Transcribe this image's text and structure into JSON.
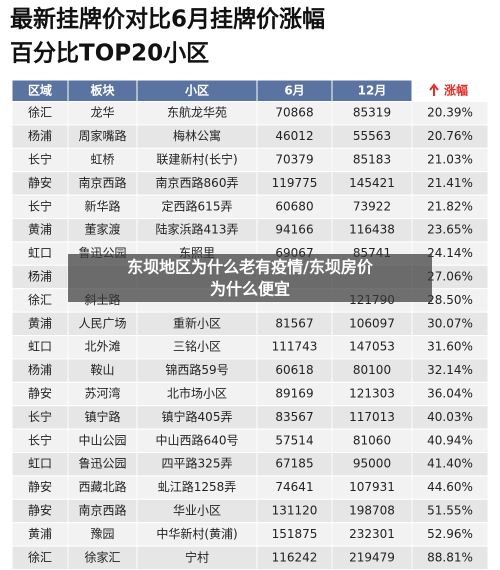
{
  "title": {
    "lines": [
      "最新挂牌价对比6月挂牌价涨幅",
      "百分比TOP20小区"
    ]
  },
  "table": {
    "header": [
      "区域",
      "板块",
      "小区",
      "6月",
      "12月",
      "涨幅"
    ],
    "rows": [
      [
        "徐汇",
        "龙华",
        "东航龙华苑",
        "70868",
        "85319",
        "20.39%"
      ],
      [
        "杨浦",
        "周家嘴路",
        "梅林公寓",
        "46012",
        "55563",
        "20.76%"
      ],
      [
        "长宁",
        "虹桥",
        "联建新村(长宁)",
        "70379",
        "85183",
        "21.03%"
      ],
      [
        "静安",
        "南京西路",
        "南京西路860弄",
        "119775",
        "145421",
        "21.41%"
      ],
      [
        "长宁",
        "新华路",
        "定西路615弄",
        "60680",
        "73922",
        "21.82%"
      ],
      [
        "黄浦",
        "董家渡",
        "陆家浜路413弄",
        "94166",
        "116438",
        "23.65%"
      ],
      [
        "虹口",
        "鲁迅公园",
        "东照里",
        "69067",
        "85741",
        "24.14%"
      ],
      [
        "杨浦",
        null,
        null,
        null,
        null,
        "27.06%"
      ],
      [
        "徐汇",
        "斜土路",
        null,
        null,
        "121790",
        "28.50%"
      ],
      [
        "黄浦",
        "人民广场",
        "重新小区",
        "81567",
        "106097",
        "30.07%"
      ],
      [
        "虹口",
        "北外滩",
        "三铭小区",
        "111743",
        "147053",
        "31.60%"
      ],
      [
        "杨浦",
        "鞍山",
        "锦西路59号",
        "60618",
        "80100",
        "32.14%"
      ],
      [
        "静安",
        "苏河湾",
        "北市场小区",
        "89169",
        "121303",
        "36.04%"
      ],
      [
        "长宁",
        "镇宁路",
        "镇宁路405弄",
        "83567",
        "117013",
        "40.03%"
      ],
      [
        "长宁",
        "中山公园",
        "中山西路640号",
        "57514",
        "81060",
        "40.94%"
      ],
      [
        "虹口",
        "鲁迅公园",
        "四平路325弄",
        "67185",
        "95000",
        "41.40%"
      ],
      [
        "静安",
        "西藏北路",
        "虬江路1258弄",
        "74641",
        "107931",
        "44.60%"
      ],
      [
        "静安",
        "南京西路",
        "华业小区",
        "131120",
        "198708",
        "51.55%"
      ],
      [
        "黄浦",
        "豫园",
        "中华新村(黄浦)",
        "151875",
        "232301",
        "52.96%"
      ],
      [
        "徐汇",
        "徐家汇",
        "宁村",
        "116242",
        "219479",
        "88.81%"
      ]
    ]
  },
  "banner": {
    "lines": [
      "东坝地区为什么老有疫情/东坝房价",
      "为什么便宜"
    ]
  }
}
